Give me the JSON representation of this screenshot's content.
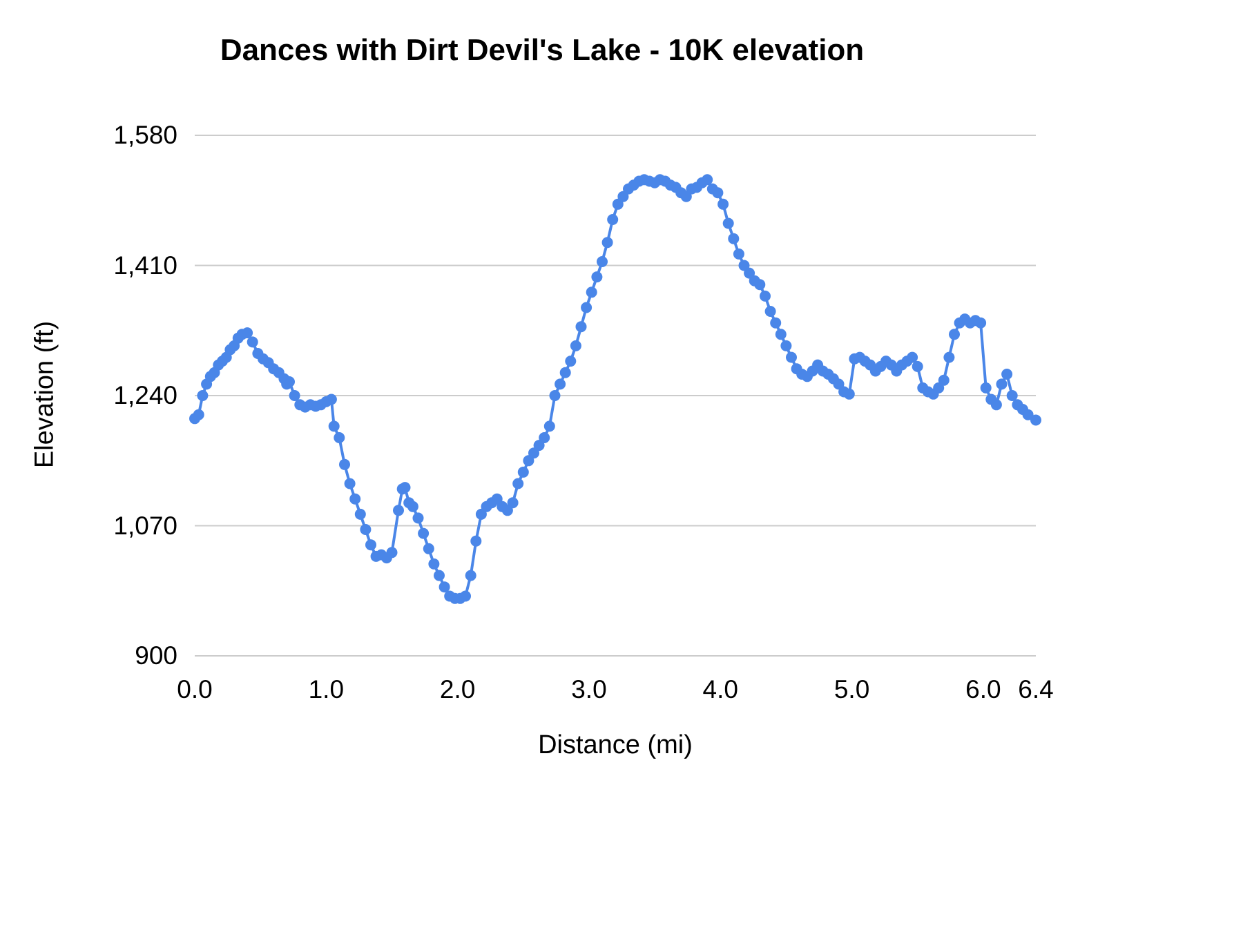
{
  "title": "Dances with Dirt Devil's Lake - 10K elevation",
  "chart_data": {
    "type": "line",
    "title": "Dances with Dirt Devil's Lake - 10K elevation",
    "xlabel": "Distance (mi)",
    "ylabel": "Elevation (ft)",
    "xlim": [
      0,
      6.4
    ],
    "ylim": [
      900,
      1580
    ],
    "grid": true,
    "legend": "none",
    "line_color": "#4a86e8",
    "grid_color": "#cccccc",
    "x_ticks": [
      {
        "value": 0.0,
        "label": "0.0"
      },
      {
        "value": 1.0,
        "label": "1.0"
      },
      {
        "value": 2.0,
        "label": "2.0"
      },
      {
        "value": 3.0,
        "label": "3.0"
      },
      {
        "value": 4.0,
        "label": "4.0"
      },
      {
        "value": 5.0,
        "label": "5.0"
      },
      {
        "value": 6.0,
        "label": "6.0"
      },
      {
        "value": 6.4,
        "label": "6.4"
      }
    ],
    "y_ticks": [
      {
        "value": 900,
        "label": "900"
      },
      {
        "value": 1070,
        "label": "1,070"
      },
      {
        "value": 1240,
        "label": "1,240"
      },
      {
        "value": 1410,
        "label": "1,410"
      },
      {
        "value": 1580,
        "label": "1,580"
      }
    ],
    "series_name": "Elevation",
    "points": [
      [
        0.0,
        1210
      ],
      [
        0.03,
        1215
      ],
      [
        0.06,
        1240
      ],
      [
        0.09,
        1255
      ],
      [
        0.12,
        1265
      ],
      [
        0.15,
        1270
      ],
      [
        0.18,
        1280
      ],
      [
        0.21,
        1285
      ],
      [
        0.24,
        1290
      ],
      [
        0.27,
        1300
      ],
      [
        0.3,
        1305
      ],
      [
        0.33,
        1315
      ],
      [
        0.36,
        1320
      ],
      [
        0.4,
        1322
      ],
      [
        0.44,
        1310
      ],
      [
        0.48,
        1295
      ],
      [
        0.52,
        1288
      ],
      [
        0.56,
        1283
      ],
      [
        0.6,
        1275
      ],
      [
        0.64,
        1270
      ],
      [
        0.68,
        1262
      ],
      [
        0.7,
        1255
      ],
      [
        0.72,
        1258
      ],
      [
        0.76,
        1240
      ],
      [
        0.8,
        1228
      ],
      [
        0.84,
        1225
      ],
      [
        0.88,
        1228
      ],
      [
        0.92,
        1226
      ],
      [
        0.96,
        1228
      ],
      [
        1.0,
        1232
      ],
      [
        1.04,
        1235
      ],
      [
        1.06,
        1200
      ],
      [
        1.1,
        1185
      ],
      [
        1.14,
        1150
      ],
      [
        1.18,
        1125
      ],
      [
        1.22,
        1105
      ],
      [
        1.26,
        1085
      ],
      [
        1.3,
        1065
      ],
      [
        1.34,
        1045
      ],
      [
        1.38,
        1030
      ],
      [
        1.42,
        1032
      ],
      [
        1.46,
        1028
      ],
      [
        1.5,
        1035
      ],
      [
        1.55,
        1090
      ],
      [
        1.58,
        1118
      ],
      [
        1.6,
        1120
      ],
      [
        1.63,
        1100
      ],
      [
        1.66,
        1095
      ],
      [
        1.7,
        1080
      ],
      [
        1.74,
        1060
      ],
      [
        1.78,
        1040
      ],
      [
        1.82,
        1020
      ],
      [
        1.86,
        1005
      ],
      [
        1.9,
        990
      ],
      [
        1.94,
        978
      ],
      [
        1.98,
        975
      ],
      [
        2.02,
        975
      ],
      [
        2.06,
        978
      ],
      [
        2.1,
        1005
      ],
      [
        2.14,
        1050
      ],
      [
        2.18,
        1085
      ],
      [
        2.22,
        1095
      ],
      [
        2.26,
        1100
      ],
      [
        2.3,
        1105
      ],
      [
        2.34,
        1095
      ],
      [
        2.38,
        1090
      ],
      [
        2.42,
        1100
      ],
      [
        2.46,
        1125
      ],
      [
        2.5,
        1140
      ],
      [
        2.54,
        1155
      ],
      [
        2.58,
        1165
      ],
      [
        2.62,
        1175
      ],
      [
        2.66,
        1185
      ],
      [
        2.7,
        1200
      ],
      [
        2.74,
        1240
      ],
      [
        2.78,
        1255
      ],
      [
        2.82,
        1270
      ],
      [
        2.86,
        1285
      ],
      [
        2.9,
        1305
      ],
      [
        2.94,
        1330
      ],
      [
        2.98,
        1355
      ],
      [
        3.02,
        1375
      ],
      [
        3.06,
        1395
      ],
      [
        3.1,
        1415
      ],
      [
        3.14,
        1440
      ],
      [
        3.18,
        1470
      ],
      [
        3.22,
        1490
      ],
      [
        3.26,
        1500
      ],
      [
        3.3,
        1510
      ],
      [
        3.34,
        1515
      ],
      [
        3.38,
        1520
      ],
      [
        3.42,
        1522
      ],
      [
        3.46,
        1520
      ],
      [
        3.5,
        1518
      ],
      [
        3.54,
        1522
      ],
      [
        3.58,
        1520
      ],
      [
        3.62,
        1515
      ],
      [
        3.66,
        1512
      ],
      [
        3.7,
        1505
      ],
      [
        3.74,
        1500
      ],
      [
        3.78,
        1510
      ],
      [
        3.82,
        1512
      ],
      [
        3.86,
        1518
      ],
      [
        3.9,
        1522
      ],
      [
        3.94,
        1510
      ],
      [
        3.98,
        1505
      ],
      [
        4.02,
        1490
      ],
      [
        4.06,
        1465
      ],
      [
        4.1,
        1445
      ],
      [
        4.14,
        1425
      ],
      [
        4.18,
        1410
      ],
      [
        4.22,
        1400
      ],
      [
        4.26,
        1390
      ],
      [
        4.3,
        1385
      ],
      [
        4.34,
        1370
      ],
      [
        4.38,
        1350
      ],
      [
        4.42,
        1335
      ],
      [
        4.46,
        1320
      ],
      [
        4.5,
        1305
      ],
      [
        4.54,
        1290
      ],
      [
        4.58,
        1275
      ],
      [
        4.62,
        1268
      ],
      [
        4.66,
        1265
      ],
      [
        4.7,
        1272
      ],
      [
        4.74,
        1280
      ],
      [
        4.78,
        1272
      ],
      [
        4.82,
        1268
      ],
      [
        4.86,
        1262
      ],
      [
        4.9,
        1255
      ],
      [
        4.94,
        1245
      ],
      [
        4.98,
        1242
      ],
      [
        5.02,
        1288
      ],
      [
        5.06,
        1290
      ],
      [
        5.1,
        1285
      ],
      [
        5.14,
        1280
      ],
      [
        5.18,
        1272
      ],
      [
        5.22,
        1278
      ],
      [
        5.26,
        1285
      ],
      [
        5.3,
        1280
      ],
      [
        5.34,
        1272
      ],
      [
        5.38,
        1280
      ],
      [
        5.42,
        1285
      ],
      [
        5.46,
        1290
      ],
      [
        5.5,
        1278
      ],
      [
        5.54,
        1250
      ],
      [
        5.58,
        1245
      ],
      [
        5.62,
        1242
      ],
      [
        5.66,
        1250
      ],
      [
        5.7,
        1260
      ],
      [
        5.74,
        1290
      ],
      [
        5.78,
        1320
      ],
      [
        5.82,
        1335
      ],
      [
        5.86,
        1340
      ],
      [
        5.9,
        1335
      ],
      [
        5.94,
        1338
      ],
      [
        5.98,
        1335
      ],
      [
        6.02,
        1250
      ],
      [
        6.06,
        1235
      ],
      [
        6.1,
        1228
      ],
      [
        6.14,
        1255
      ],
      [
        6.18,
        1268
      ],
      [
        6.22,
        1240
      ],
      [
        6.26,
        1228
      ],
      [
        6.3,
        1222
      ],
      [
        6.34,
        1215
      ],
      [
        6.4,
        1208
      ]
    ]
  }
}
